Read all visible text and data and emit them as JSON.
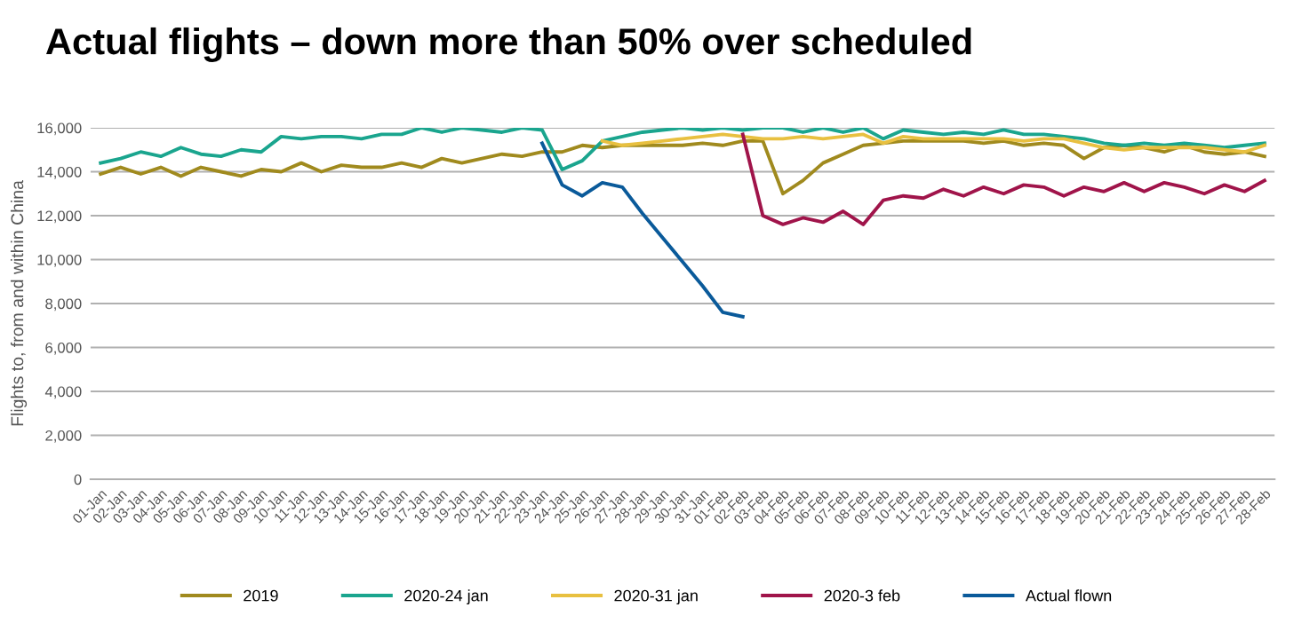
{
  "chart_data": {
    "type": "line",
    "title": "Actual flights – down more than 50% over scheduled",
    "ylabel": "Flights to, from and within China",
    "categories": [
      "01-Jan",
      "02-Jan",
      "03-Jan",
      "04-Jan",
      "05-Jan",
      "06-Jan",
      "07-Jan",
      "08-Jan",
      "09-Jan",
      "10-Jan",
      "11-Jan",
      "12-Jan",
      "13-Jan",
      "14-Jan",
      "15-Jan",
      "16-Jan",
      "17-Jan",
      "18-Jan",
      "19-Jan",
      "20-Jan",
      "21-Jan",
      "22-Jan",
      "23-Jan",
      "24-Jan",
      "25-Jan",
      "26-Jan",
      "27-Jan",
      "28-Jan",
      "29-Jan",
      "30-Jan",
      "31-Jan",
      "01-Feb",
      "02-Feb",
      "03-Feb",
      "04-Feb",
      "05-Feb",
      "06-Feb",
      "07-Feb",
      "08-Feb",
      "09-Feb",
      "10-Feb",
      "11-Feb",
      "12-Feb",
      "13-Feb",
      "14-Feb",
      "15-Feb",
      "16-Feb",
      "17-Feb",
      "18-Feb",
      "19-Feb",
      "20-Feb",
      "21-Feb",
      "22-Feb",
      "23-Feb",
      "24-Feb",
      "25-Feb",
      "26-Feb",
      "27-Feb",
      "28-Feb"
    ],
    "series": [
      {
        "name": "2019",
        "color": "#a08a1e",
        "values": [
          13900,
          14200,
          13900,
          14200,
          13800,
          14200,
          14000,
          13800,
          14100,
          14000,
          14400,
          14000,
          14300,
          14200,
          14200,
          14400,
          14200,
          14600,
          14400,
          14600,
          14800,
          14700,
          14900,
          14900,
          15200,
          15100,
          15200,
          15200,
          15200,
          15200,
          15300,
          15200,
          15400,
          15400,
          13000,
          13600,
          14400,
          14800,
          15200,
          15300,
          15400,
          15400,
          15400,
          15400,
          15300,
          15400,
          15200,
          15300,
          15200,
          14600,
          15100,
          15200,
          15100,
          14900,
          15200,
          14900,
          14800,
          14900,
          14700
        ]
      },
      {
        "name": "2020-24 jan",
        "color": "#1aa58e",
        "values": [
          14400,
          14600,
          14900,
          14700,
          15100,
          14800,
          14700,
          15000,
          14900,
          15600,
          15500,
          15600,
          15600,
          15500,
          15700,
          15700,
          16000,
          15800,
          16000,
          15900,
          15800,
          16000,
          15900,
          14100,
          14500,
          15400,
          15600,
          15800,
          15900,
          16000,
          15900,
          16000,
          15900,
          16000,
          16000,
          15800,
          16000,
          15800,
          16000,
          15500,
          15900,
          15800,
          15700,
          15800,
          15700,
          15900,
          15700,
          15700,
          15600,
          15500,
          15300,
          15200,
          15300,
          15200,
          15300,
          15200,
          15100,
          15200,
          15300
        ]
      },
      {
        "name": "2020-31 jan",
        "color": "#e8c040",
        "values": [
          null,
          null,
          null,
          null,
          null,
          null,
          null,
          null,
          null,
          null,
          null,
          null,
          null,
          null,
          null,
          null,
          null,
          null,
          null,
          null,
          null,
          null,
          null,
          null,
          null,
          15400,
          15200,
          15300,
          15400,
          15500,
          15600,
          15700,
          15600,
          15500,
          15500,
          15600,
          15500,
          15600,
          15700,
          15300,
          15600,
          15500,
          15500,
          15500,
          15500,
          15500,
          15400,
          15500,
          15500,
          15300,
          15100,
          15000,
          15100,
          15100,
          15100,
          15100,
          15000,
          14900,
          15200
        ]
      },
      {
        "name": "2020-3 feb",
        "color": "#a0144a",
        "values": [
          null,
          null,
          null,
          null,
          null,
          null,
          null,
          null,
          null,
          null,
          null,
          null,
          null,
          null,
          null,
          null,
          null,
          null,
          null,
          null,
          null,
          null,
          null,
          null,
          null,
          null,
          null,
          null,
          null,
          null,
          null,
          null,
          15700,
          12000,
          11600,
          11900,
          11700,
          12200,
          11600,
          12700,
          12900,
          12800,
          13200,
          12900,
          13300,
          13000,
          13400,
          13300,
          12900,
          13300,
          13100,
          13500,
          13100,
          13500,
          13300,
          13000,
          13400,
          13100,
          13600
        ]
      },
      {
        "name": "Actual flown",
        "color": "#0a5a9a",
        "values": [
          null,
          null,
          null,
          null,
          null,
          null,
          null,
          null,
          null,
          null,
          null,
          null,
          null,
          null,
          null,
          null,
          null,
          null,
          null,
          null,
          null,
          null,
          15300,
          13400,
          12900,
          13500,
          13300,
          12100,
          11000,
          9900,
          8800,
          7600,
          7400,
          null,
          null,
          null,
          null,
          null,
          null,
          null,
          null,
          null,
          null,
          null,
          null,
          null,
          null,
          null,
          null,
          null,
          null,
          null,
          null,
          null,
          null,
          null,
          null,
          null,
          null
        ]
      }
    ],
    "ylim": [
      0,
      16000
    ],
    "yticks": [
      {
        "value": 0,
        "label": "0"
      },
      {
        "value": 2000,
        "label": "2,000"
      },
      {
        "value": 4000,
        "label": "4,000"
      },
      {
        "value": 6000,
        "label": "6,000"
      },
      {
        "value": 8000,
        "label": "8,000"
      },
      {
        "value": 10000,
        "label": "10,000"
      },
      {
        "value": 12000,
        "label": "12,000"
      },
      {
        "value": 14000,
        "label": "14,000"
      },
      {
        "value": 16000,
        "label": "16,000"
      }
    ],
    "grid": "y",
    "legend": "bottom",
    "marker": "none",
    "line_style": "solid"
  }
}
